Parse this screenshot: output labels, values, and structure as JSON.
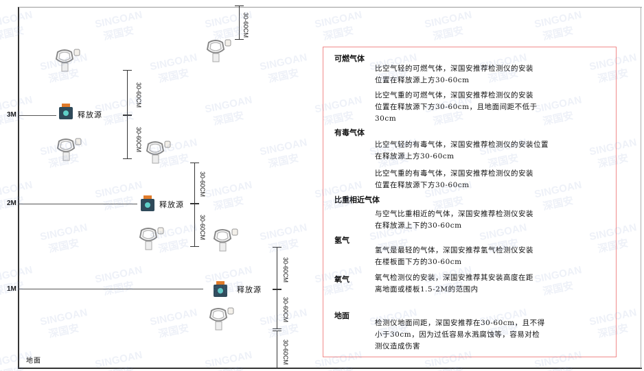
{
  "axis": {
    "levels": [
      "3M",
      "2M",
      "1M"
    ],
    "ground_label": "地面"
  },
  "source_label": "释放源",
  "dimension_label": "30-60CM",
  "watermark": {
    "brand": "SINGOAN",
    "cn": "深国安"
  },
  "colors": {
    "border": "#f08a8a",
    "source_body": "#2f4a5a",
    "source_cap": "#e07b2a",
    "detector": "#888888"
  },
  "notes": {
    "flammable": {
      "title": "可燃气体",
      "paras": [
        [
          "比空气轻的可燃气体，深国安推荐检测仪的安装",
          "位置在释放源上方30-60cm"
        ],
        [
          "比空气重的可燃气体，深国安推荐检测仪的安装",
          "位置在释放源下方30-60cm，且地面间距不低于",
          "30cm"
        ]
      ]
    },
    "toxic": {
      "title": "有毒气体",
      "paras": [
        [
          "比空气轻的有毒气体，深国安推荐检测仪的安装位置",
          "在释放源上方30-60cm"
        ],
        [
          "比空气重的有毒气体，深国安推荐检测仪的安装",
          "位置在释放源下方30-60cm"
        ]
      ]
    },
    "similar": {
      "title": "比重相近气体",
      "paras": [
        [
          "与空气比重相近的气体，深国安推荐检测仪安装",
          "在释放源上下的30-60cm"
        ]
      ]
    },
    "hydrogen": {
      "title": "氢气",
      "paras": [
        [
          "氢气是最轻的气体，深国安推荐氢气检测仪安装",
          "在楼板面下方的30-60cm"
        ]
      ]
    },
    "oxygen": {
      "title": "氧气",
      "paras": [
        [
          "氧气检测仪的安装，深国安推荐其安装高度在距",
          "离地面或楼板1.5-2M的范围内"
        ]
      ]
    },
    "ground": {
      "title": "地面",
      "paras": [
        [
          "检测仪地面间距，深国安推荐在30-60cm，且不得",
          "小于30cm，因为过低容易水溅腐蚀等，容易对检",
          "测仪造成伤害"
        ]
      ]
    }
  }
}
